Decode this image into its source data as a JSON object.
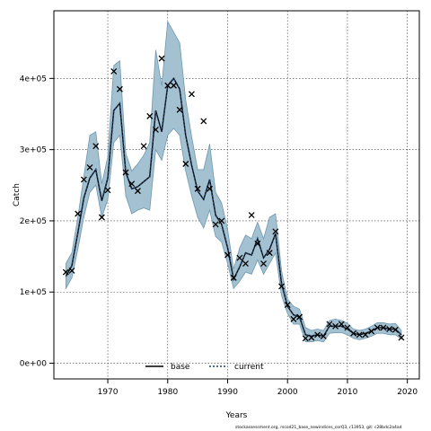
{
  "chart_data": {
    "type": "line",
    "title": "",
    "xlabel": "Years",
    "ylabel": "Catch",
    "xlim": [
      1961,
      2022
    ],
    "ylim": [
      -22000,
      495000
    ],
    "x_ticks": [
      1970,
      1980,
      1990,
      2000,
      2010,
      2020
    ],
    "y_ticks": [
      0,
      100000,
      200000,
      300000,
      400000
    ],
    "y_tick_labels": [
      "0e+00",
      "1e+05",
      "2e+05",
      "3e+05",
      "4e+05"
    ],
    "grid": true,
    "legend": {
      "position": "bottom-center",
      "entries": [
        "base",
        "current"
      ]
    },
    "colors": {
      "band_fill": "#a3c1d0",
      "band_edge": "#6e98b0",
      "base_line": "#000000",
      "current_line": "#1f3f66",
      "observed": "#000000"
    },
    "series": [
      {
        "name": "current",
        "years": [
          1963,
          1964,
          1965,
          1966,
          1967,
          1968,
          1969,
          1970,
          1971,
          1972,
          1973,
          1974,
          1975,
          1976,
          1977,
          1978,
          1979,
          1980,
          1981,
          1982,
          1983,
          1984,
          1985,
          1986,
          1987,
          1988,
          1989,
          1990,
          1991,
          1992,
          1993,
          1994,
          1995,
          1996,
          1997,
          1998,
          1999,
          2000,
          2001,
          2002,
          2003,
          2004,
          2005,
          2006,
          2007,
          2008,
          2009,
          2010,
          2011,
          2012,
          2013,
          2014,
          2015,
          2016,
          2017,
          2018,
          2019
        ],
        "values": [
          122000,
          137000,
          183000,
          232000,
          260000,
          272000,
          228000,
          260000,
          355000,
          365000,
          268000,
          245000,
          248000,
          255000,
          262000,
          355000,
          325000,
          390000,
          400000,
          385000,
          320000,
          278000,
          242000,
          230000,
          258000,
          208000,
          195000,
          162000,
          118000,
          135000,
          155000,
          152000,
          175000,
          148000,
          160000,
          182000,
          112000,
          80000,
          68000,
          65000,
          40000,
          38000,
          40000,
          38000,
          52000,
          52000,
          52000,
          48000,
          42000,
          40000,
          42000,
          45000,
          50000,
          50000,
          48000,
          48000,
          40000
        ],
        "lower": [
          105000,
          120000,
          160000,
          205000,
          240000,
          250000,
          205000,
          230000,
          310000,
          320000,
          235000,
          210000,
          215000,
          218000,
          215000,
          300000,
          285000,
          320000,
          330000,
          320000,
          270000,
          235000,
          205000,
          190000,
          215000,
          178000,
          170000,
          140000,
          105000,
          115000,
          128000,
          125000,
          145000,
          125000,
          140000,
          155000,
          95000,
          70000,
          55000,
          55000,
          30000,
          30000,
          32000,
          30000,
          42000,
          43000,
          43000,
          40000,
          35000,
          33000,
          35000,
          38000,
          42000,
          42000,
          40000,
          40000,
          34000
        ],
        "upper": [
          140000,
          155000,
          205000,
          262000,
          320000,
          325000,
          252000,
          290000,
          418000,
          425000,
          295000,
          270000,
          280000,
          292000,
          310000,
          440000,
          390000,
          480000,
          465000,
          450000,
          370000,
          318000,
          272000,
          272000,
          308000,
          240000,
          225000,
          188000,
          132000,
          162000,
          180000,
          175000,
          198000,
          175000,
          205000,
          210000,
          130000,
          90000,
          80000,
          76000,
          50000,
          46000,
          48000,
          46000,
          60000,
          62000,
          60000,
          56000,
          48000,
          46000,
          48000,
          52000,
          57000,
          57000,
          55000,
          56000,
          46000
        ]
      },
      {
        "name": "base",
        "years": [
          1963,
          1964,
          1965,
          1966,
          1967,
          1968,
          1969,
          1970,
          1971,
          1972,
          1973,
          1974,
          1975,
          1976,
          1977,
          1978,
          1979,
          1980,
          1981,
          1982,
          1983,
          1984,
          1985,
          1986,
          1987,
          1988,
          1989,
          1990,
          1991,
          1992,
          1993,
          1994,
          1995,
          1996,
          1997,
          1998,
          1999,
          2000,
          2001,
          2002,
          2003,
          2004,
          2005,
          2006,
          2007,
          2008,
          2009,
          2010,
          2011,
          2012,
          2013,
          2014,
          2015,
          2016,
          2017,
          2018,
          2019
        ],
        "values": [
          122000,
          137000,
          183000,
          232000,
          260000,
          272000,
          228000,
          260000,
          355000,
          365000,
          268000,
          245000,
          248000,
          255000,
          262000,
          355000,
          325000,
          390000,
          400000,
          385000,
          320000,
          278000,
          242000,
          230000,
          258000,
          208000,
          195000,
          162000,
          118000,
          135000,
          155000,
          152000,
          175000,
          148000,
          160000,
          182000,
          112000,
          80000,
          68000,
          65000,
          40000,
          38000,
          40000,
          38000,
          52000,
          52000,
          52000,
          48000,
          42000,
          40000,
          42000,
          45000,
          50000,
          50000,
          48000,
          48000,
          40000
        ]
      }
    ],
    "observed": {
      "years": [
        1963,
        1964,
        1965,
        1966,
        1967,
        1968,
        1969,
        1970,
        1971,
        1972,
        1973,
        1974,
        1975,
        1976,
        1977,
        1978,
        1979,
        1980,
        1981,
        1982,
        1983,
        1984,
        1985,
        1986,
        1987,
        1988,
        1989,
        1990,
        1991,
        1992,
        1993,
        1994,
        1995,
        1996,
        1997,
        1998,
        1999,
        2000,
        2001,
        2002,
        2003,
        2004,
        2005,
        2006,
        2007,
        2008,
        2009,
        2010,
        2011,
        2012,
        2013,
        2014,
        2015,
        2016,
        2017,
        2018,
        2019
      ],
      "values": [
        128000,
        130000,
        210000,
        258000,
        275000,
        305000,
        205000,
        243000,
        410000,
        385000,
        268000,
        252000,
        242000,
        305000,
        347000,
        328000,
        428000,
        390000,
        390000,
        356000,
        280000,
        378000,
        245000,
        340000,
        245000,
        195000,
        200000,
        152000,
        120000,
        148000,
        140000,
        208000,
        168000,
        140000,
        155000,
        185000,
        108000,
        82000,
        62000,
        65000,
        35000,
        36000,
        40000,
        38000,
        55000,
        52000,
        55000,
        50000,
        42000,
        40000,
        40000,
        45000,
        50000,
        50000,
        48000,
        47000,
        36000
      ]
    }
  },
  "footer": "stockassessment.org, rscod21_base_newindices_corQ3, r13953, git: c28bdc2a4ad"
}
